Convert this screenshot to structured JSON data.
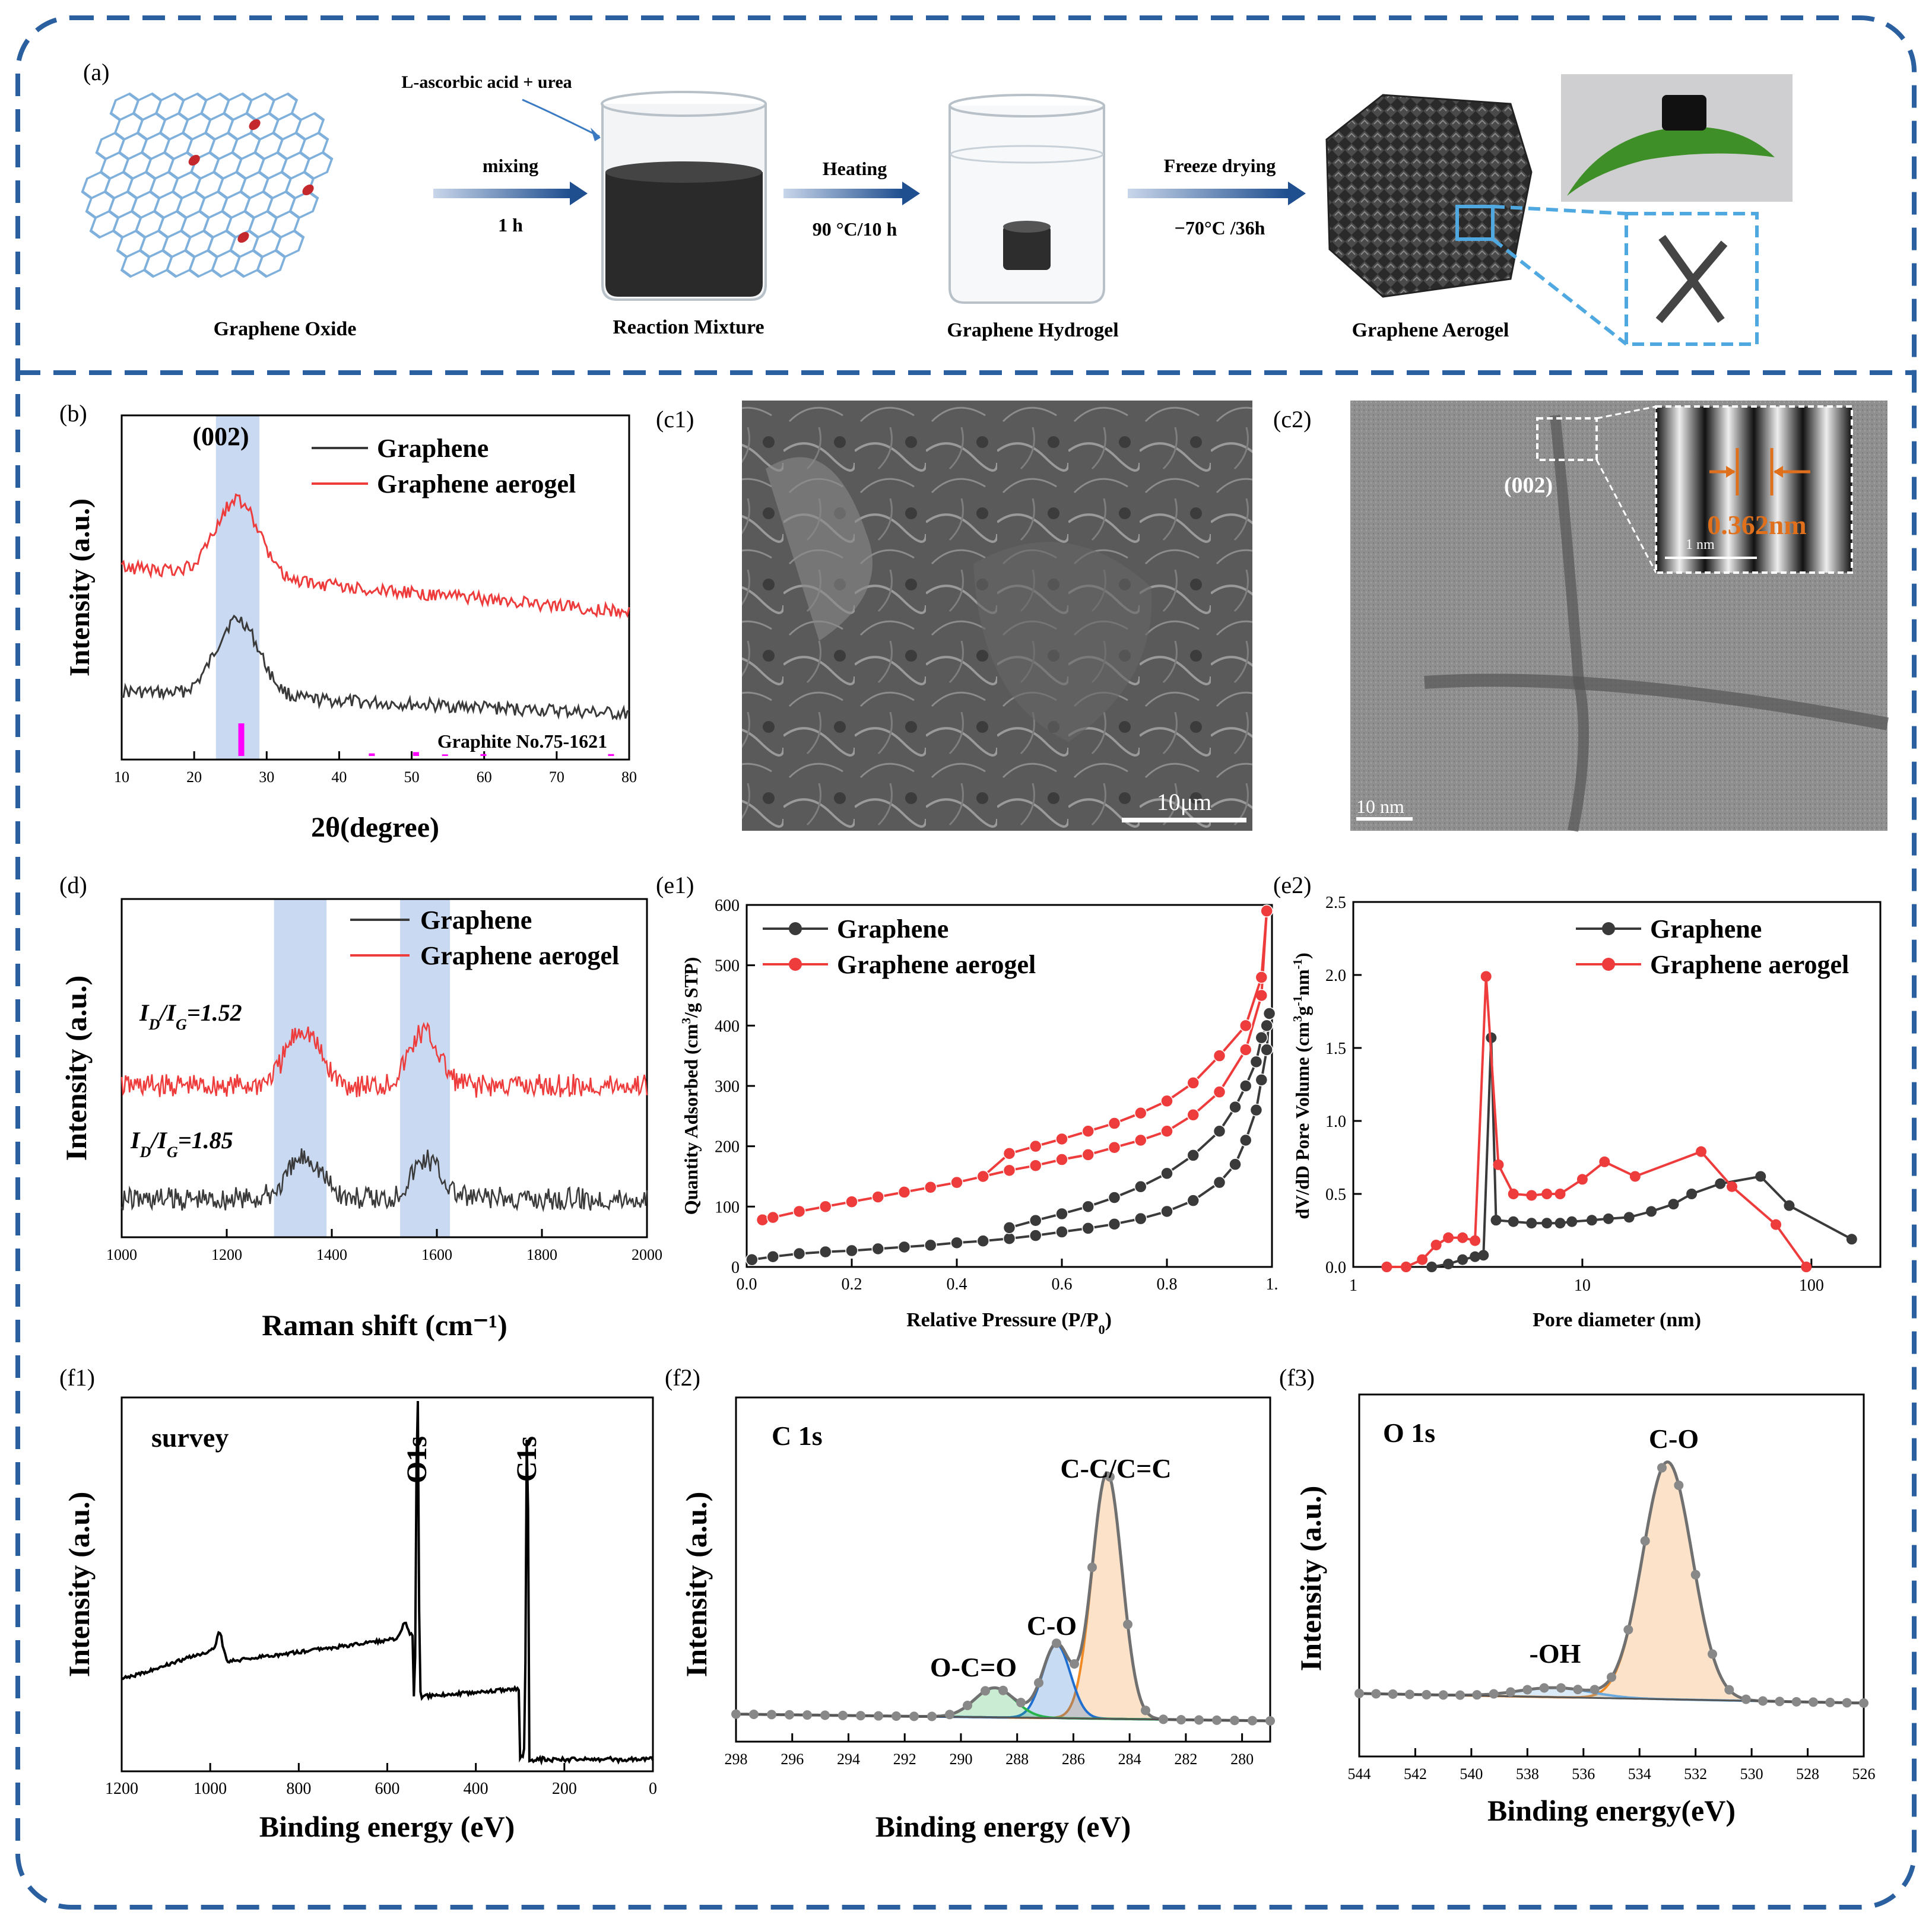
{
  "panel_labels": {
    "a": "(a)",
    "b": "(b)",
    "c1": "(c1)",
    "c2": "(c2)",
    "d": "(d)",
    "e1": "(e1)",
    "e2": "(e2)",
    "f1": "(f1)",
    "f2": "(f2)",
    "f3": "(f3)"
  },
  "scheme": {
    "go_label": "Graphene Oxide",
    "reagent_label": "L-ascorbic acid + urea",
    "step1_top": "mixing",
    "step1_bottom": "1 h",
    "rm_label": "Reaction Mixture",
    "step2_top": "Heating",
    "step2_bottom": "90 °C/10 h",
    "gh_label": "Graphene Hydrogel",
    "step3_top": "Freeze drying",
    "step3_bottom": "−70°C /36h",
    "ga_label": "Graphene Aerogel"
  },
  "sem": {
    "scale": "10μm"
  },
  "tem": {
    "plane": "(002)",
    "spacing": "0.362nm",
    "inset_scale": "1 nm",
    "scale": "10 nm"
  },
  "colors": {
    "graphene": "#3a3a3a",
    "aerogel": "#ee3b3b",
    "band": "#bcd0ee",
    "frame": "#2a5fa0",
    "ref": "#ff00ff"
  },
  "chart_data": [
    {
      "id": "b",
      "type": "line",
      "xlabel": "2θ(degree)",
      "ylabel": "Intensity (a.u.)",
      "xlim": [
        10,
        80
      ],
      "xticks": [
        10,
        20,
        30,
        40,
        50,
        60,
        70,
        80
      ],
      "legend": [
        "Graphene",
        "Graphene aerogel"
      ],
      "peak_label": "(002)",
      "shaded_band": [
        23,
        29
      ],
      "reference_label": "Graphite No.75-1621",
      "reference_peaks": [
        {
          "x": 26.5,
          "h": 1.0
        },
        {
          "x": 44.5,
          "h": 0.08
        },
        {
          "x": 50.6,
          "h": 0.12
        },
        {
          "x": 54.6,
          "h": 0.05
        },
        {
          "x": 59.9,
          "h": 0.06
        },
        {
          "x": 77.5,
          "h": 0.06
        }
      ],
      "series": [
        {
          "name": "Graphene",
          "peak": 26,
          "offset": 0
        },
        {
          "name": "Graphene aerogel",
          "peak": 26,
          "offset": 1
        }
      ]
    },
    {
      "id": "d",
      "type": "line",
      "xlabel": "Raman shift (cm⁻¹)",
      "ylabel": "Intensity (a.u.)",
      "xlim": [
        1000,
        2000
      ],
      "xticks": [
        1000,
        1200,
        1400,
        1600,
        1800,
        2000
      ],
      "legend": [
        "Graphene",
        "Graphene aerogel"
      ],
      "shaded_bands": [
        [
          1290,
          1390
        ],
        [
          1530,
          1625
        ]
      ],
      "ratio_labels": {
        "aerogel": "ID/IG=1.52",
        "graphene": "ID/IG=1.85"
      },
      "ratio_parts": {
        "aerogel": [
          "I",
          "D",
          "/I",
          "G",
          "=1.52"
        ],
        "graphene": [
          "I",
          "D",
          "/I",
          "G",
          "=1.85"
        ]
      },
      "series": [
        {
          "name": "Graphene",
          "D": 1350,
          "G": 1580
        },
        {
          "name": "Graphene aerogel",
          "D": 1345,
          "G": 1575
        }
      ]
    },
    {
      "id": "e1",
      "type": "line",
      "xlabel": "Relative Pressure (P/P0)",
      "ylabel": "Quantity Adsorbed (cm3/g STP)",
      "xlabel_parts": [
        "Relative Pressure (P/P",
        "0",
        ")"
      ],
      "ylabel_parts": [
        "Quantity Adsorbed (cm",
        "3",
        "/g STP)"
      ],
      "xlim": [
        0,
        1.0
      ],
      "ylim": [
        0,
        600
      ],
      "xticks": [
        0.0,
        0.2,
        0.4,
        0.6,
        0.8,
        1.0
      ],
      "xtick_labels": [
        "0.0",
        "0.2",
        "0.4",
        "0.6",
        "0.8",
        "1."
      ],
      "yticks": [
        0,
        100,
        200,
        300,
        400,
        500,
        600
      ],
      "legend": [
        "Graphene",
        "Graphene aerogel"
      ],
      "series": [
        {
          "name": "Graphene",
          "adsorption": [
            [
              0.01,
              12
            ],
            [
              0.05,
              17
            ],
            [
              0.1,
              22
            ],
            [
              0.15,
              25
            ],
            [
              0.2,
              27
            ],
            [
              0.25,
              30
            ],
            [
              0.3,
              33
            ],
            [
              0.35,
              36
            ],
            [
              0.4,
              40
            ],
            [
              0.45,
              43
            ],
            [
              0.5,
              47
            ],
            [
              0.55,
              52
            ],
            [
              0.6,
              58
            ],
            [
              0.65,
              64
            ],
            [
              0.7,
              71
            ],
            [
              0.75,
              80
            ],
            [
              0.8,
              92
            ],
            [
              0.85,
              110
            ],
            [
              0.9,
              140
            ],
            [
              0.93,
              170
            ],
            [
              0.95,
              210
            ],
            [
              0.97,
              260
            ],
            [
              0.98,
              310
            ],
            [
              0.99,
              360
            ],
            [
              0.995,
              420
            ]
          ],
          "desorption": [
            [
              0.995,
              420
            ],
            [
              0.99,
              400
            ],
            [
              0.98,
              380
            ],
            [
              0.97,
              340
            ],
            [
              0.95,
              300
            ],
            [
              0.93,
              265
            ],
            [
              0.9,
              225
            ],
            [
              0.85,
              185
            ],
            [
              0.8,
              155
            ],
            [
              0.75,
              133
            ],
            [
              0.7,
              115
            ],
            [
              0.65,
              100
            ],
            [
              0.6,
              88
            ],
            [
              0.55,
              77
            ],
            [
              0.5,
              65
            ]
          ]
        },
        {
          "name": "Graphene aerogel",
          "adsorption": [
            [
              0.03,
              78
            ],
            [
              0.05,
              82
            ],
            [
              0.1,
              92
            ],
            [
              0.15,
              100
            ],
            [
              0.2,
              108
            ],
            [
              0.25,
              116
            ],
            [
              0.3,
              124
            ],
            [
              0.35,
              132
            ],
            [
              0.4,
              140
            ],
            [
              0.45,
              150
            ],
            [
              0.5,
              160
            ],
            [
              0.55,
              168
            ],
            [
              0.6,
              178
            ],
            [
              0.65,
              186
            ],
            [
              0.7,
              198
            ],
            [
              0.75,
              210
            ],
            [
              0.8,
              225
            ],
            [
              0.85,
              252
            ],
            [
              0.9,
              290
            ],
            [
              0.95,
              360
            ],
            [
              0.98,
              450
            ],
            [
              0.99,
              590
            ]
          ],
          "desorption": [
            [
              0.99,
              590
            ],
            [
              0.98,
              480
            ],
            [
              0.95,
              400
            ],
            [
              0.9,
              350
            ],
            [
              0.85,
              305
            ],
            [
              0.8,
              275
            ],
            [
              0.75,
              255
            ],
            [
              0.7,
              238
            ],
            [
              0.65,
              225
            ],
            [
              0.6,
              212
            ],
            [
              0.55,
              200
            ],
            [
              0.5,
              188
            ],
            [
              0.45,
              150
            ]
          ]
        }
      ]
    },
    {
      "id": "e2",
      "type": "line",
      "xscale": "log",
      "xlabel": "Pore diameter (nm)",
      "ylabel": "dV/dD Pore Volume (cm3g-1nm-1)",
      "ylabel_parts": [
        "dV/dD Pore Volume (cm",
        "3",
        "g",
        "-1",
        "nm",
        "-1",
        ")"
      ],
      "xlim": [
        1,
        200
      ],
      "ylim": [
        0,
        2.5
      ],
      "xticks": [
        1,
        10,
        100
      ],
      "yticks": [
        0.0,
        0.5,
        1.0,
        1.5,
        2.0,
        2.5
      ],
      "legend": [
        "Graphene",
        "Graphene aerogel"
      ],
      "series": [
        {
          "name": "Graphene",
          "points": [
            [
              2.2,
              0.0
            ],
            [
              2.6,
              0.02
            ],
            [
              3.0,
              0.05
            ],
            [
              3.4,
              0.07
            ],
            [
              3.7,
              0.08
            ],
            [
              4.0,
              1.57
            ],
            [
              4.2,
              0.32
            ],
            [
              5,
              0.31
            ],
            [
              6,
              0.3
            ],
            [
              7,
              0.3
            ],
            [
              8,
              0.3
            ],
            [
              9,
              0.31
            ],
            [
              11,
              0.32
            ],
            [
              13,
              0.33
            ],
            [
              16,
              0.34
            ],
            [
              20,
              0.38
            ],
            [
              25,
              0.43
            ],
            [
              30,
              0.5
            ],
            [
              40,
              0.57
            ],
            [
              60,
              0.62
            ],
            [
              80,
              0.42
            ],
            [
              150,
              0.19
            ]
          ]
        },
        {
          "name": "Graphene aerogel",
          "points": [
            [
              1.4,
              0.0
            ],
            [
              1.7,
              0.0
            ],
            [
              2.0,
              0.05
            ],
            [
              2.3,
              0.15
            ],
            [
              2.6,
              0.2
            ],
            [
              3.0,
              0.2
            ],
            [
              3.4,
              0.18
            ],
            [
              3.8,
              1.99
            ],
            [
              4.3,
              0.7
            ],
            [
              5,
              0.5
            ],
            [
              6,
              0.49
            ],
            [
              7,
              0.5
            ],
            [
              8,
              0.5
            ],
            [
              10,
              0.6
            ],
            [
              12.5,
              0.72
            ],
            [
              17,
              0.62
            ],
            [
              33,
              0.79
            ],
            [
              45,
              0.55
            ],
            [
              70,
              0.29
            ],
            [
              95,
              0.0
            ]
          ]
        }
      ]
    },
    {
      "id": "f1",
      "type": "line",
      "title": "survey",
      "xlabel": "Binding energy (eV)",
      "ylabel": "Intensity (a.u.)",
      "xlim": [
        1200,
        0
      ],
      "xticks": [
        1200,
        1000,
        800,
        600,
        400,
        200,
        0
      ],
      "peak_labels": [
        {
          "text": "O1s",
          "x": 532
        },
        {
          "text": "C1s",
          "x": 284
        }
      ]
    },
    {
      "id": "f2",
      "type": "line",
      "title": "C 1s",
      "xlabel": "Binding energy (eV)",
      "ylabel": "Intensity (a.u.)",
      "xlim": [
        298,
        279
      ],
      "xticks": [
        298,
        296,
        294,
        292,
        290,
        288,
        286,
        284,
        282,
        280
      ],
      "components": [
        {
          "label": "C-C/C=C",
          "center": 284.8,
          "height": 1.0,
          "color": "#f08a24"
        },
        {
          "label": "C-O",
          "center": 286.6,
          "height": 0.3,
          "color": "#1f6fd1"
        },
        {
          "label": "O-C=O",
          "center": 288.8,
          "height": 0.12,
          "color": "#28b44c"
        }
      ]
    },
    {
      "id": "f3",
      "type": "line",
      "title": "O 1s",
      "xlabel": "Binding energy(eV)",
      "ylabel": "Intensity (a.u.)",
      "xlim": [
        544,
        526
      ],
      "xticks": [
        544,
        542,
        540,
        538,
        536,
        534,
        532,
        530,
        528,
        526
      ],
      "components": [
        {
          "label": "C-O",
          "center": 533.0,
          "height": 1.0,
          "color": "#f08a24"
        },
        {
          "label": "-OH",
          "center": 537.0,
          "height": 0.04,
          "color": "#6aaae0"
        }
      ]
    }
  ]
}
